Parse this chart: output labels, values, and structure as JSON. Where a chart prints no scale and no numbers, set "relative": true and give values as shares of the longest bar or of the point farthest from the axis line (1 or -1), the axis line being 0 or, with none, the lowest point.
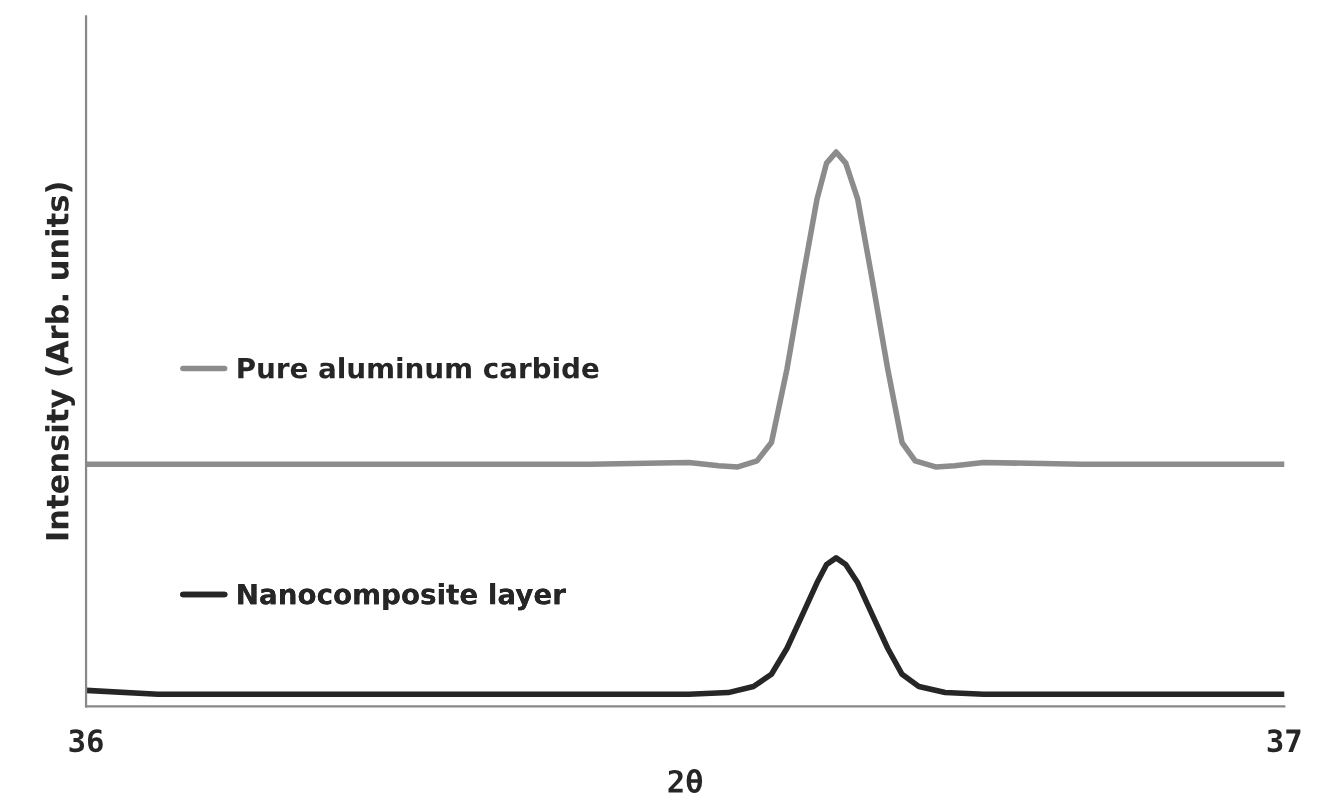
{
  "chart_data": {
    "type": "line",
    "relative": true,
    "xlabel": "2θ",
    "ylabel": "Intensity (Arb. units)",
    "xlim": [
      36,
      37
    ],
    "xticks": [
      36,
      37
    ],
    "grid": false,
    "legend": "left",
    "marker": "none",
    "line_style": "solid",
    "series": [
      {
        "name": "Pure aluminum carbide",
        "color": "#8c8c8c",
        "x": [
          36.0,
          36.421,
          36.503,
          36.528,
          36.544,
          36.56,
          36.572,
          36.585,
          36.598,
          36.61,
          36.618,
          36.626,
          36.634,
          36.644,
          36.656,
          36.669,
          36.681,
          36.692,
          36.709,
          36.725,
          36.749,
          36.831,
          37.0
        ],
        "values": [
          0.437,
          0.437,
          0.44,
          0.434,
          0.432,
          0.443,
          0.476,
          0.609,
          0.771,
          0.915,
          0.98,
          1.0,
          0.98,
          0.915,
          0.771,
          0.609,
          0.476,
          0.443,
          0.432,
          0.434,
          0.44,
          0.437,
          0.437
        ]
      },
      {
        "name": "Nanocomposite layer",
        "color": "#262626",
        "x": [
          36.0,
          36.06,
          36.421,
          36.503,
          36.536,
          36.557,
          36.572,
          36.585,
          36.598,
          36.61,
          36.618,
          36.626,
          36.634,
          36.644,
          36.656,
          36.669,
          36.681,
          36.695,
          36.717,
          36.749,
          37.0
        ],
        "values": [
          0.029,
          0.022,
          0.022,
          0.022,
          0.025,
          0.036,
          0.058,
          0.105,
          0.166,
          0.223,
          0.256,
          0.268,
          0.256,
          0.223,
          0.166,
          0.105,
          0.058,
          0.036,
          0.025,
          0.022,
          0.022
        ]
      }
    ]
  }
}
